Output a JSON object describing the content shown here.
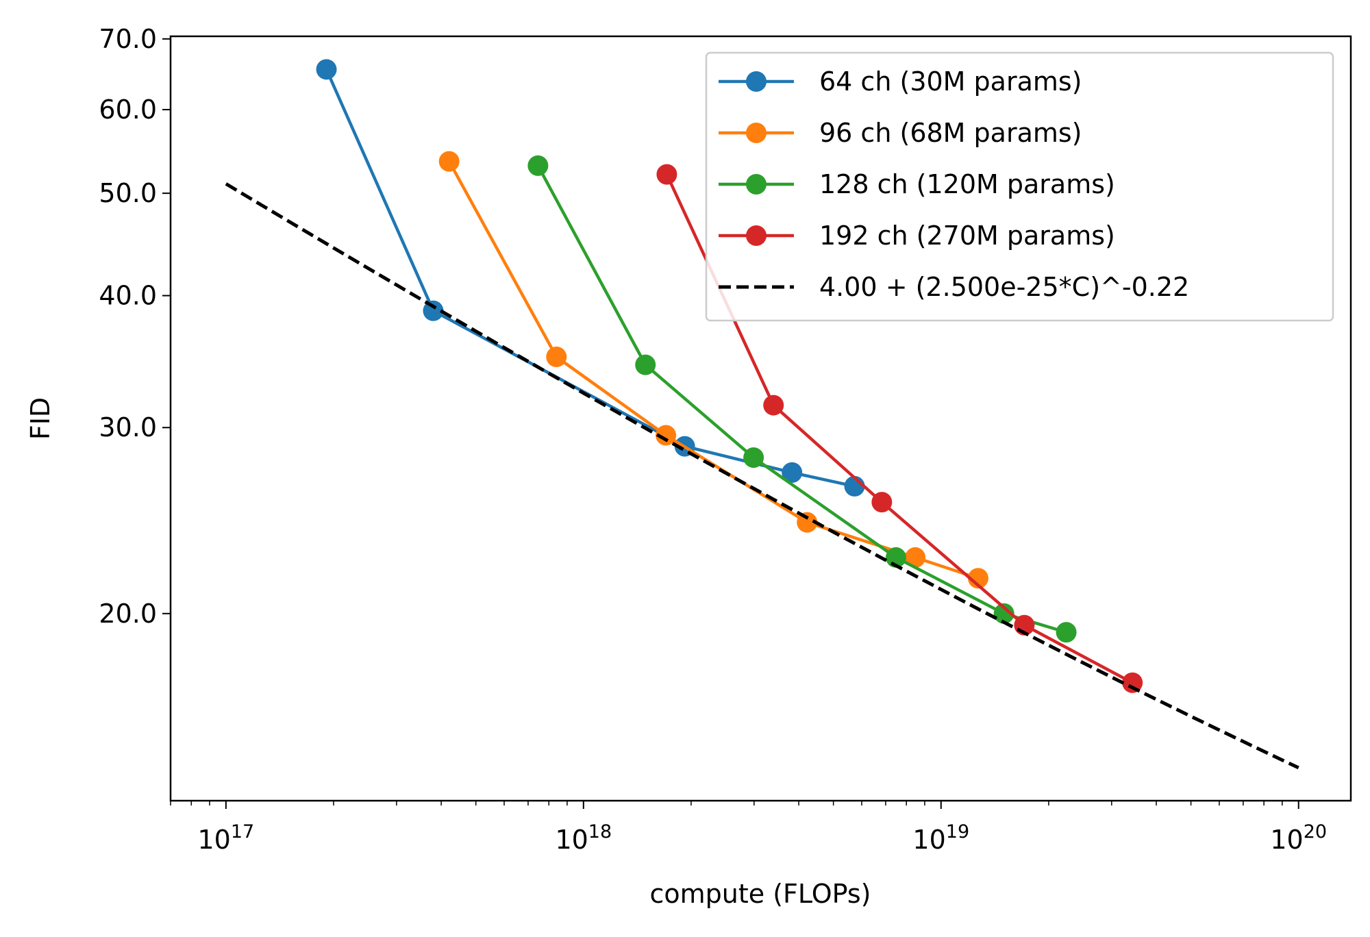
{
  "chart_data": {
    "type": "line",
    "title": "",
    "xlabel": "compute (FLOPs)",
    "ylabel": "FID",
    "xscale": "log",
    "yscale": "log",
    "xlim": [
      7e+16,
      1.4e+20
    ],
    "ylim": [
      13.3,
      70.4
    ],
    "xticks": [
      {
        "value": 1e+17,
        "base": "10",
        "exp": "17"
      },
      {
        "value": 1e+18,
        "base": "10",
        "exp": "18"
      },
      {
        "value": 1e+19,
        "base": "10",
        "exp": "19"
      },
      {
        "value": 1e+20,
        "base": "10",
        "exp": "20"
      }
    ],
    "yticks": [
      {
        "value": 20,
        "label": "20.0"
      },
      {
        "value": 30,
        "label": "30.0"
      },
      {
        "value": 40,
        "label": "40.0"
      },
      {
        "value": 50,
        "label": "50.0"
      },
      {
        "value": 60,
        "label": "60.0"
      },
      {
        "value": 70,
        "label": "70.0"
      }
    ],
    "grid": false,
    "legend_position": "top-right",
    "series": [
      {
        "name": "64 ch (30M params)",
        "color": "#1f77b4",
        "x": [
          1.91e+17,
          3.8e+17,
          1.92e+18,
          3.83e+18,
          5.73e+18
        ],
        "y": [
          65.5,
          38.7,
          28.8,
          27.2,
          26.4
        ]
      },
      {
        "name": "96 ch (68M params)",
        "color": "#ff7f0e",
        "x": [
          4.21e+17,
          8.4e+17,
          1.7e+18,
          4.22e+18,
          8.47e+18,
          1.27e+19
        ],
        "y": [
          53.6,
          35.0,
          29.5,
          24.4,
          22.6,
          21.6
        ]
      },
      {
        "name": "128 ch (120M params)",
        "color": "#2ca02c",
        "x": [
          7.46e+17,
          1.49e+18,
          2.99e+18,
          7.48e+18,
          1.5e+19,
          2.24e+19
        ],
        "y": [
          53.1,
          34.4,
          28.1,
          22.6,
          20.0,
          19.2
        ]
      },
      {
        "name": "192 ch (270M params)",
        "color": "#d62728",
        "x": [
          1.71e+18,
          3.4e+18,
          6.83e+18,
          1.71e+19,
          3.43e+19
        ],
        "y": [
          52.1,
          31.5,
          25.5,
          19.5,
          17.2
        ]
      }
    ],
    "fit": {
      "name": "4.00 + (2.500e-25*C)^-0.22",
      "color": "#000000",
      "offset": 4.0,
      "scale": 2.5e-25,
      "exponent": -0.22,
      "x_range": [
        1e+17,
        1e+20
      ]
    }
  }
}
